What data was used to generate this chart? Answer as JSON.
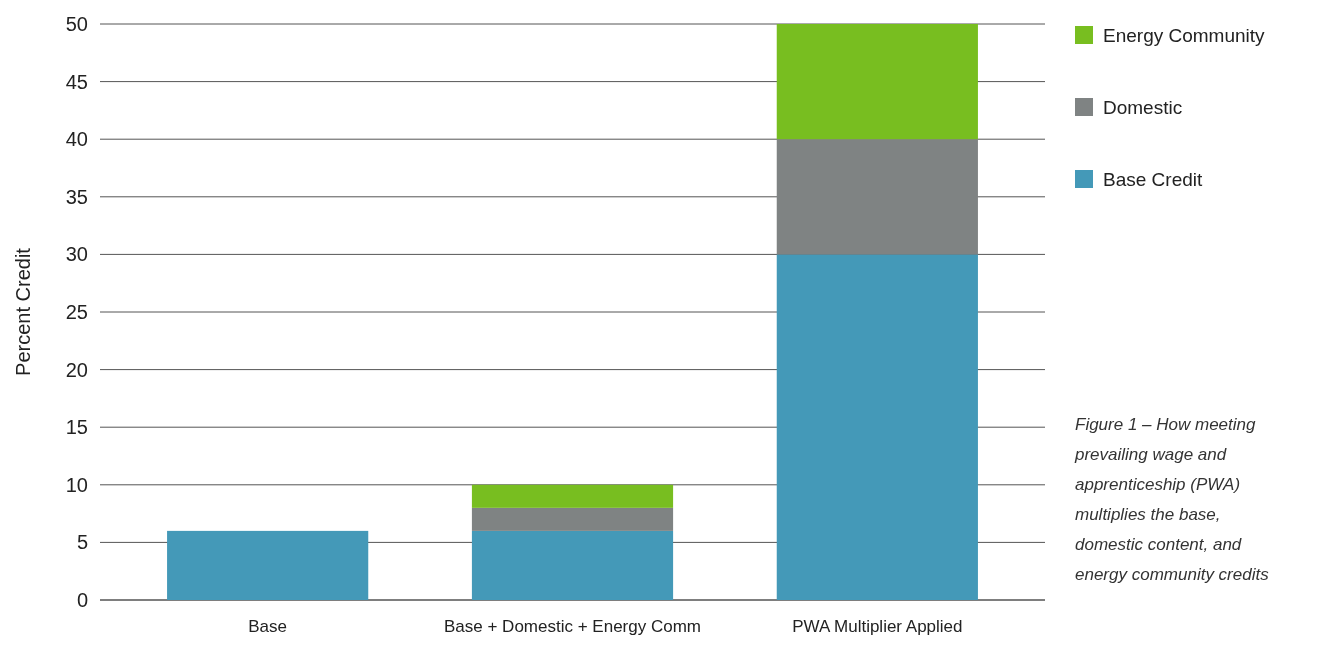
{
  "chart_data": {
    "type": "bar",
    "stacked": true,
    "ylabel": "Percent Credit",
    "categories": [
      "Base",
      "Base + Domestic + Energy Comm",
      "PWA Multiplier Applied"
    ],
    "series": [
      {
        "name": "Base Credit",
        "color": "#4499b8",
        "values": [
          6,
          6,
          30
        ]
      },
      {
        "name": "Domestic",
        "color": "#7f8383",
        "values": [
          0,
          2,
          10
        ]
      },
      {
        "name": "Energy Community",
        "color": "#78be20",
        "values": [
          0,
          2,
          10
        ]
      }
    ],
    "ylim": [
      0,
      50
    ],
    "yticks": [
      0,
      5,
      10,
      15,
      20,
      25,
      30,
      35,
      40,
      45,
      50
    ],
    "grid": "y",
    "legend": "top right",
    "annotations": [
      "Figure 1 – How meeting prevailing wage and apprenticeship (PWA) multiplies the base, domestic content, and energy community credits"
    ]
  }
}
